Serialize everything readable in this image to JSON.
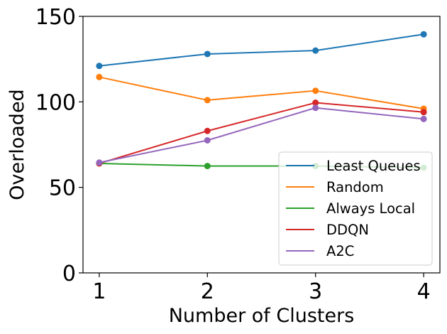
{
  "chart_data": {
    "type": "line",
    "title": "",
    "xlabel": "Number of Clusters",
    "ylabel": "Overloaded",
    "x": [
      1,
      2,
      3,
      4
    ],
    "xticks": [
      "1",
      "2",
      "3",
      "4"
    ],
    "yticks": [
      "0",
      "50",
      "100",
      "150"
    ],
    "xlim": [
      0.85,
      4.15
    ],
    "ylim": [
      0,
      150
    ],
    "grid": false,
    "legend_position": "lower-right",
    "series": [
      {
        "name": "Least Queues",
        "color": "#1f77b4",
        "values": [
          121,
          128,
          130,
          139.5
        ]
      },
      {
        "name": "Random",
        "color": "#ff7f0e",
        "values": [
          114.5,
          101,
          106.5,
          96
        ]
      },
      {
        "name": "Always Local",
        "color": "#2ca02c",
        "values": [
          64,
          62.5,
          62.5,
          61.5
        ]
      },
      {
        "name": "DDQN",
        "color": "#d62728",
        "values": [
          64,
          83,
          99.5,
          94
        ]
      },
      {
        "name": "A2C",
        "color": "#9467bd",
        "values": [
          64.5,
          77.5,
          96.5,
          90
        ]
      }
    ]
  }
}
